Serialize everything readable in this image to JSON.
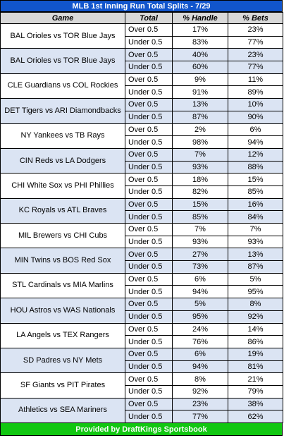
{
  "title": "MLB 1st Inning Run Total Splits - 7/29",
  "columns": [
    "Game",
    "Total",
    "% Handle",
    "% Bets"
  ],
  "footer": "Provided by DraftKings Sportsbook",
  "colors": {
    "title_bg": "#1155cc",
    "footer_bg": "#11c711",
    "header_bg": "#d9d9d9",
    "band": "#dbe4f3"
  },
  "games": [
    {
      "game": "BAL Orioles vs TOR Blue Jays",
      "over": {
        "total": "Over 0.5",
        "handle": "17%",
        "bets": "23%"
      },
      "under": {
        "total": "Under 0.5",
        "handle": "83%",
        "bets": "77%"
      }
    },
    {
      "game": "BAL Orioles vs TOR Blue Jays",
      "over": {
        "total": "Over 0.5",
        "handle": "40%",
        "bets": "23%"
      },
      "under": {
        "total": "Under 0.5",
        "handle": "60%",
        "bets": "77%"
      }
    },
    {
      "game": "CLE Guardians vs COL Rockies",
      "over": {
        "total": "Over 0.5",
        "handle": "9%",
        "bets": "11%"
      },
      "under": {
        "total": "Under 0.5",
        "handle": "91%",
        "bets": "89%"
      }
    },
    {
      "game": "DET Tigers vs ARI Diamondbacks",
      "over": {
        "total": "Over 0.5",
        "handle": "13%",
        "bets": "10%"
      },
      "under": {
        "total": "Under 0.5",
        "handle": "87%",
        "bets": "90%"
      }
    },
    {
      "game": "NY Yankees vs TB Rays",
      "over": {
        "total": "Over 0.5",
        "handle": "2%",
        "bets": "6%"
      },
      "under": {
        "total": "Under 0.5",
        "handle": "98%",
        "bets": "94%"
      }
    },
    {
      "game": "CIN Reds vs LA Dodgers",
      "over": {
        "total": "Over 0.5",
        "handle": "7%",
        "bets": "12%"
      },
      "under": {
        "total": "Under 0.5",
        "handle": "93%",
        "bets": "88%"
      }
    },
    {
      "game": "CHI White Sox vs PHI Phillies",
      "over": {
        "total": "Over 0.5",
        "handle": "18%",
        "bets": "15%"
      },
      "under": {
        "total": "Under 0.5",
        "handle": "82%",
        "bets": "85%"
      }
    },
    {
      "game": "KC Royals vs ATL Braves",
      "over": {
        "total": "Over 0.5",
        "handle": "15%",
        "bets": "16%"
      },
      "under": {
        "total": "Under 0.5",
        "handle": "85%",
        "bets": "84%"
      }
    },
    {
      "game": "MIL Brewers vs CHI Cubs",
      "over": {
        "total": "Over 0.5",
        "handle": "7%",
        "bets": "7%"
      },
      "under": {
        "total": "Under 0.5",
        "handle": "93%",
        "bets": "93%"
      }
    },
    {
      "game": "MIN Twins vs BOS Red Sox",
      "over": {
        "total": "Over 0.5",
        "handle": "27%",
        "bets": "13%"
      },
      "under": {
        "total": "Under 0.5",
        "handle": "73%",
        "bets": "87%"
      }
    },
    {
      "game": "STL Cardinals vs MIA Marlins",
      "over": {
        "total": "Over 0.5",
        "handle": "6%",
        "bets": "5%"
      },
      "under": {
        "total": "Under 0.5",
        "handle": "94%",
        "bets": "95%"
      }
    },
    {
      "game": "HOU Astros vs WAS Nationals",
      "over": {
        "total": "Over 0.5",
        "handle": "5%",
        "bets": "8%"
      },
      "under": {
        "total": "Under 0.5",
        "handle": "95%",
        "bets": "92%"
      }
    },
    {
      "game": "LA Angels vs TEX Rangers",
      "over": {
        "total": "Over 0.5",
        "handle": "24%",
        "bets": "14%"
      },
      "under": {
        "total": "Under 0.5",
        "handle": "76%",
        "bets": "86%"
      }
    },
    {
      "game": "SD Padres vs NY Mets",
      "over": {
        "total": "Over 0.5",
        "handle": "6%",
        "bets": "19%"
      },
      "under": {
        "total": "Under 0.5",
        "handle": "94%",
        "bets": "81%"
      }
    },
    {
      "game": "SF Giants vs PIT Pirates",
      "over": {
        "total": "Over 0.5",
        "handle": "8%",
        "bets": "21%"
      },
      "under": {
        "total": "Under 0.5",
        "handle": "92%",
        "bets": "79%"
      }
    },
    {
      "game": "Athletics vs SEA Mariners",
      "over": {
        "total": "Over 0.5",
        "handle": "23%",
        "bets": "38%"
      },
      "under": {
        "total": "Under 0.5",
        "handle": "77%",
        "bets": "62%"
      }
    }
  ]
}
